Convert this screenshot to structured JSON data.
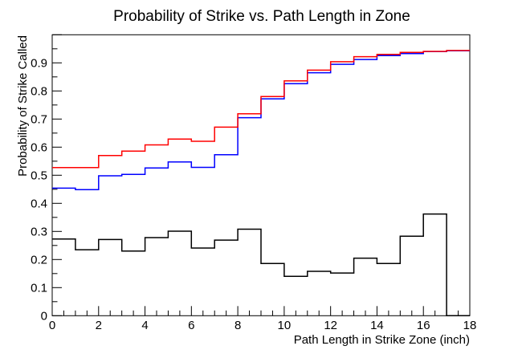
{
  "page_title": "Probability of Strike vs. Path Length in Zone",
  "chart_data": {
    "type": "step-histogram",
    "title": "Probability of Strike vs. Path Length in Zone",
    "xlabel": "Path Length in Strike Zone (inch)",
    "ylabel": "Probability of Strike Called",
    "xlim": [
      0,
      18
    ],
    "ylim": [
      0,
      1.0
    ],
    "grid": false,
    "legend": "none",
    "x_major_tick_step": 2,
    "x_minor_tick_step": 0.5,
    "y_major_tick_step": 0.1,
    "y_minor_tick_step": 0.05,
    "x_tick_labels": [
      "0",
      "2",
      "4",
      "6",
      "8",
      "10",
      "12",
      "14",
      "16",
      "18"
    ],
    "y_tick_labels": [
      "0",
      "0.1",
      "0.2",
      "0.3",
      "0.4",
      "0.5",
      "0.6",
      "0.7",
      "0.8",
      "0.9"
    ],
    "bin_width": 1,
    "bin_edges": [
      0,
      1,
      2,
      3,
      4,
      5,
      6,
      7,
      8,
      9,
      10,
      11,
      12,
      13,
      14,
      15,
      16,
      17,
      18
    ],
    "axis_color": "#000000",
    "background_color": "#ffffff",
    "series": [
      {
        "name": "blue",
        "color": "#0000ff",
        "values": [
          0.454,
          0.449,
          0.498,
          0.503,
          0.526,
          0.547,
          0.528,
          0.573,
          0.705,
          0.772,
          0.826,
          0.865,
          0.895,
          0.912,
          0.926,
          0.933,
          0.94,
          0.943
        ]
      },
      {
        "name": "red",
        "color": "#ff0000",
        "values": [
          0.527,
          0.527,
          0.57,
          0.586,
          0.608,
          0.629,
          0.621,
          0.671,
          0.719,
          0.78,
          0.836,
          0.874,
          0.904,
          0.922,
          0.93,
          0.937,
          0.941,
          0.944
        ]
      },
      {
        "name": "black",
        "color": "#000000",
        "values": [
          0.273,
          0.235,
          0.271,
          0.23,
          0.278,
          0.301,
          0.241,
          0.269,
          0.308,
          0.186,
          0.14,
          0.158,
          0.152,
          0.205,
          0.186,
          0.283,
          0.362,
          0.0
        ]
      }
    ]
  }
}
